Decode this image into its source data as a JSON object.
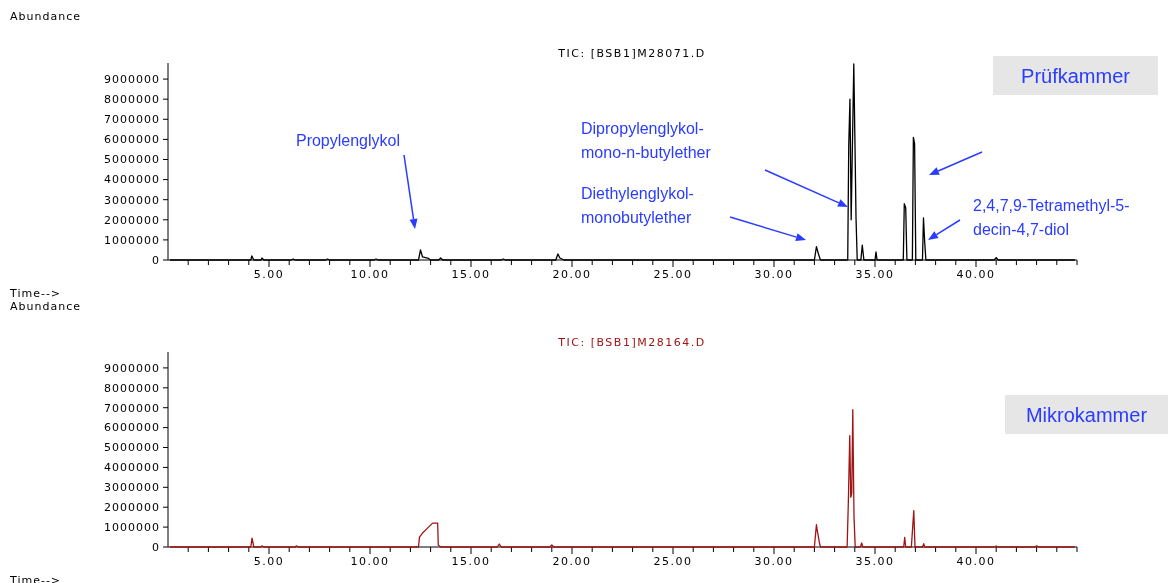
{
  "chart_data": [
    {
      "type": "line",
      "title": "TIC: [BSB1]M28071.D",
      "xlabel": "Time-->",
      "ylabel": "Abundance",
      "xlim": [
        0,
        45
      ],
      "ylim": [
        0,
        9800000
      ],
      "xticks": [
        {
          "value": 1,
          "label": null
        },
        {
          "value": 2,
          "label": null
        },
        {
          "value": 3,
          "label": null
        },
        {
          "value": 4,
          "label": null
        },
        {
          "value": 5,
          "label": "5.00"
        },
        {
          "value": 6,
          "label": null
        },
        {
          "value": 7,
          "label": null
        },
        {
          "value": 8,
          "label": null
        },
        {
          "value": 9,
          "label": null
        },
        {
          "value": 10,
          "label": "10.00"
        },
        {
          "value": 11,
          "label": null
        },
        {
          "value": 12,
          "label": null
        },
        {
          "value": 13,
          "label": null
        },
        {
          "value": 14,
          "label": null
        },
        {
          "value": 15,
          "label": "15.00"
        },
        {
          "value": 16,
          "label": null
        },
        {
          "value": 17,
          "label": null
        },
        {
          "value": 18,
          "label": null
        },
        {
          "value": 19,
          "label": null
        },
        {
          "value": 20,
          "label": "20.00"
        },
        {
          "value": 21,
          "label": null
        },
        {
          "value": 22,
          "label": null
        },
        {
          "value": 23,
          "label": null
        },
        {
          "value": 24,
          "label": null
        },
        {
          "value": 25,
          "label": "25.00"
        },
        {
          "value": 26,
          "label": null
        },
        {
          "value": 27,
          "label": null
        },
        {
          "value": 28,
          "label": null
        },
        {
          "value": 29,
          "label": null
        },
        {
          "value": 30,
          "label": "30.00"
        },
        {
          "value": 31,
          "label": null
        },
        {
          "value": 32,
          "label": null
        },
        {
          "value": 33,
          "label": null
        },
        {
          "value": 34,
          "label": null
        },
        {
          "value": 35,
          "label": "35.00"
        },
        {
          "value": 36,
          "label": null
        },
        {
          "value": 37,
          "label": null
        },
        {
          "value": 38,
          "label": null
        },
        {
          "value": 39,
          "label": null
        },
        {
          "value": 40,
          "label": "40.00"
        },
        {
          "value": 41,
          "label": null
        },
        {
          "value": 42,
          "label": null
        },
        {
          "value": 43,
          "label": null
        },
        {
          "value": 44,
          "label": null
        },
        {
          "value": 45,
          "label": null
        }
      ],
      "yticks": [
        0,
        1000000,
        2000000,
        3000000,
        4000000,
        5000000,
        6000000,
        7000000,
        8000000,
        9000000
      ],
      "series": [
        {
          "color": "#000000",
          "x": [
            0.1,
            4.1,
            4.15,
            4.25,
            4.6,
            4.65,
            4.75,
            6.1,
            6.2,
            6.3,
            7.8,
            7.9,
            8.0,
            10.2,
            10.3,
            10.4,
            12.4,
            12.5,
            12.6,
            12.9,
            13.0,
            13.4,
            13.5,
            13.6,
            16.5,
            16.6,
            16.7,
            19.2,
            19.3,
            19.4,
            19.6,
            32.0,
            32.1,
            32.2,
            32.3,
            33.65,
            33.7,
            33.76,
            33.82,
            33.95,
            34.02,
            34.06,
            34.12,
            34.3,
            34.37,
            34.45,
            35.0,
            35.05,
            35.1,
            36.4,
            36.45,
            36.52,
            36.58,
            36.85,
            36.9,
            36.96,
            37.02,
            37.35,
            37.4,
            37.46,
            37.52,
            40.9,
            41.0,
            41.1,
            44.9
          ],
          "values": [
            0,
            0,
            200000,
            0,
            0,
            100000,
            0,
            0,
            50000,
            0,
            0,
            50000,
            0,
            0,
            50000,
            0,
            0,
            500000,
            150000,
            80000,
            0,
            0,
            100000,
            0,
            0,
            50000,
            0,
            0,
            300000,
            100000,
            0,
            0,
            660000,
            300000,
            0,
            0,
            5700000,
            8000000,
            2000000,
            9750000,
            5000000,
            2100000,
            0,
            0,
            740000,
            0,
            0,
            400000,
            0,
            0,
            2800000,
            2600000,
            0,
            0,
            6100000,
            5800000,
            0,
            0,
            2100000,
            900000,
            0,
            0,
            120000,
            0,
            0
          ]
        }
      ],
      "annotations": [
        "Prüfkammer",
        "Propylenglykol",
        "Dipropylenglykol-\nmono-n-butylether",
        "Diethylenglykol-\nmonobutylether",
        "2,4,7,9-Tetramethyl-5-\ndecin-4,7-diol"
      ]
    },
    {
      "type": "line",
      "title": "TIC: [BSB1]M28164.D",
      "xlabel": "Time-->",
      "ylabel": "Abundance",
      "xlim": [
        0,
        45
      ],
      "ylim": [
        0,
        9800000
      ],
      "xticks": [
        {
          "value": 1,
          "label": null
        },
        {
          "value": 2,
          "label": null
        },
        {
          "value": 3,
          "label": null
        },
        {
          "value": 4,
          "label": null
        },
        {
          "value": 5,
          "label": "5.00"
        },
        {
          "value": 6,
          "label": null
        },
        {
          "value": 7,
          "label": null
        },
        {
          "value": 8,
          "label": null
        },
        {
          "value": 9,
          "label": null
        },
        {
          "value": 10,
          "label": "10.00"
        },
        {
          "value": 11,
          "label": null
        },
        {
          "value": 12,
          "label": null
        },
        {
          "value": 13,
          "label": null
        },
        {
          "value": 14,
          "label": null
        },
        {
          "value": 15,
          "label": "15.00"
        },
        {
          "value": 16,
          "label": null
        },
        {
          "value": 17,
          "label": null
        },
        {
          "value": 18,
          "label": null
        },
        {
          "value": 19,
          "label": null
        },
        {
          "value": 20,
          "label": "20.00"
        },
        {
          "value": 21,
          "label": null
        },
        {
          "value": 22,
          "label": null
        },
        {
          "value": 23,
          "label": null
        },
        {
          "value": 24,
          "label": null
        },
        {
          "value": 25,
          "label": "25.00"
        },
        {
          "value": 26,
          "label": null
        },
        {
          "value": 27,
          "label": null
        },
        {
          "value": 28,
          "label": null
        },
        {
          "value": 29,
          "label": null
        },
        {
          "value": 30,
          "label": "30.00"
        },
        {
          "value": 31,
          "label": null
        },
        {
          "value": 32,
          "label": null
        },
        {
          "value": 33,
          "label": null
        },
        {
          "value": 34,
          "label": null
        },
        {
          "value": 35,
          "label": "35.00"
        },
        {
          "value": 36,
          "label": null
        },
        {
          "value": 37,
          "label": null
        },
        {
          "value": 38,
          "label": null
        },
        {
          "value": 39,
          "label": null
        },
        {
          "value": 40,
          "label": "40.00"
        },
        {
          "value": 41,
          "label": null
        },
        {
          "value": 42,
          "label": null
        },
        {
          "value": 43,
          "label": null
        },
        {
          "value": 44,
          "label": null
        },
        {
          "value": 45,
          "label": null
        }
      ],
      "yticks": [
        0,
        1000000,
        2000000,
        3000000,
        4000000,
        5000000,
        6000000,
        7000000,
        8000000,
        9000000
      ],
      "series": [
        {
          "color": "#a01414",
          "x": [
            0.1,
            4.1,
            4.16,
            4.25,
            4.6,
            4.65,
            4.75,
            6.3,
            6.35,
            6.45,
            12.4,
            12.45,
            12.6,
            12.8,
            13.0,
            13.1,
            13.35,
            13.38,
            13.5,
            16.3,
            16.4,
            16.5,
            18.9,
            19.0,
            19.1,
            32.0,
            32.1,
            32.15,
            32.25,
            32.3,
            33.62,
            33.68,
            33.75,
            33.8,
            33.85,
            33.9,
            33.96,
            34.02,
            34.28,
            34.34,
            34.4,
            36.42,
            36.47,
            36.52,
            36.8,
            36.85,
            36.92,
            36.98,
            37.36,
            37.41,
            37.46,
            40.9,
            41.0,
            41.1,
            42.9,
            43.0,
            43.1,
            44.9
          ],
          "values": [
            0,
            0,
            450000,
            0,
            0,
            60000,
            0,
            0,
            60000,
            0,
            0,
            500000,
            700000,
            900000,
            1100000,
            1200000,
            1200000,
            100000,
            0,
            0,
            150000,
            0,
            0,
            100000,
            0,
            0,
            1120000,
            780000,
            200000,
            0,
            0,
            2240000,
            5600000,
            2500000,
            2700000,
            6900000,
            1540000,
            0,
            0,
            200000,
            0,
            0,
            480000,
            0,
            0,
            760000,
            1830000,
            0,
            0,
            170000,
            0,
            0,
            50000,
            0,
            0,
            60000,
            0,
            0
          ]
        }
      ],
      "annotations": [
        "Mikrokammer"
      ]
    }
  ]
}
